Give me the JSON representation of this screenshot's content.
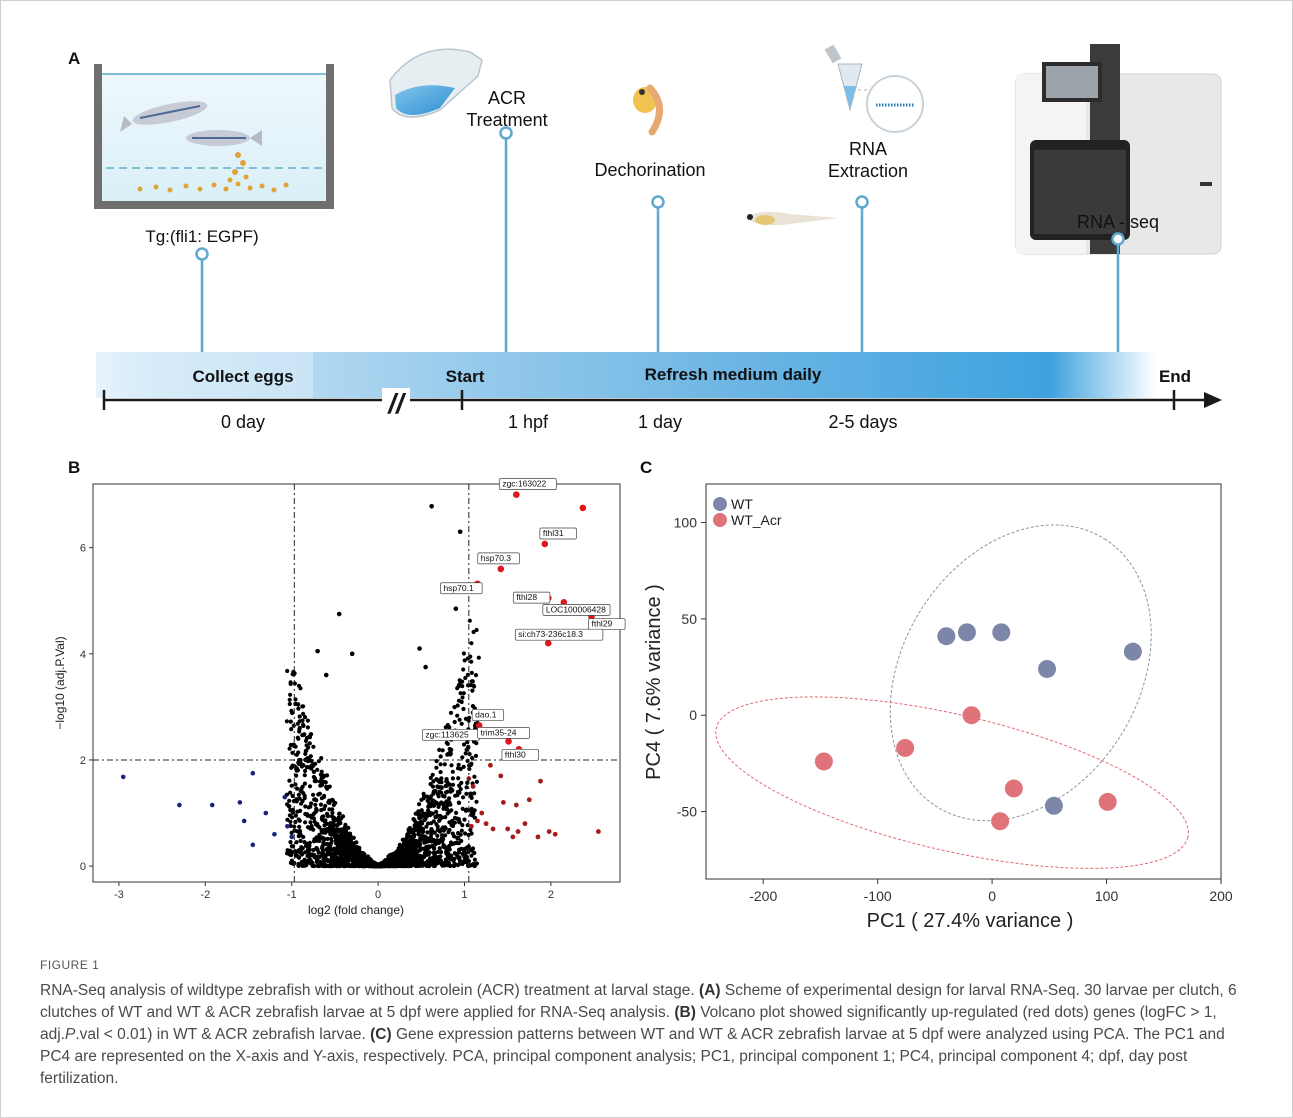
{
  "panelA": {
    "label": "A",
    "tank_label": "Tg:(fli1: EGPF)",
    "steps": [
      {
        "name": "acr",
        "label_lines": [
          "ACR",
          "Treatment"
        ]
      },
      {
        "name": "dechor",
        "label_lines": [
          "Dechorination"
        ]
      },
      {
        "name": "rna",
        "label_lines": [
          "RNA",
          "Extraction"
        ]
      },
      {
        "name": "seq",
        "label_lines": [
          "RNA - seq"
        ]
      }
    ],
    "bar_labels": {
      "collect": "Collect eggs",
      "start": "Start",
      "refresh": "Refresh medium daily",
      "end": "End"
    },
    "axis_labels": {
      "day0": "0 day",
      "hpf1": "1 hpf",
      "day1": "1 day",
      "days25": "2-5 days"
    },
    "break_mark": "//"
  },
  "panelB": {
    "label": "B",
    "chart_data": {
      "type": "scatter",
      "title": "",
      "xlabel": "log2 (fold change)",
      "ylabel": "−log10 (adj.P.Val)",
      "xlim": [
        -3.3,
        2.8
      ],
      "ylim": [
        -0.3,
        7.2
      ],
      "xticks": [
        -3,
        -2,
        -1,
        0,
        1,
        2
      ],
      "yticks": [
        0,
        2,
        4,
        6
      ],
      "thresholds": {
        "x": [
          -0.97,
          1.05
        ],
        "y": 2
      },
      "labeled_points": [
        {
          "x": 1.6,
          "y": 7.0,
          "label": "zgc:163022"
        },
        {
          "x": 1.93,
          "y": 6.07,
          "label": "fthl31"
        },
        {
          "x": 1.42,
          "y": 5.6,
          "label": "hsp70.3"
        },
        {
          "x": 1.15,
          "y": 5.32,
          "label": "hsp70.1"
        },
        {
          "x": 1.97,
          "y": 5.05,
          "label": "fthl28"
        },
        {
          "x": 2.15,
          "y": 4.97,
          "label": "LOC100006428"
        },
        {
          "x": 2.47,
          "y": 4.7,
          "label": "fthl29"
        },
        {
          "x": 1.97,
          "y": 4.2,
          "label": "si:ch73-236c18.3"
        },
        {
          "x": 1.17,
          "y": 2.65,
          "label": "dao.1"
        },
        {
          "x": 1.08,
          "y": 2.5,
          "label": "zgc:113625"
        },
        {
          "x": 1.51,
          "y": 2.35,
          "label": "trim35-24"
        },
        {
          "x": 1.63,
          "y": 2.2,
          "label": "fthl30"
        }
      ],
      "other_up": [
        {
          "x": 2.37,
          "y": 6.75
        }
      ],
      "series": [
        {
          "name": "up",
          "color": "#e0161c"
        },
        {
          "name": "down",
          "color": "#1a237e"
        },
        {
          "name": "ns",
          "color": "#000000"
        }
      ]
    }
  },
  "panelC": {
    "label": "C",
    "chart_data": {
      "type": "scatter",
      "xlabel": "PC1 ( 27.4% variance )",
      "ylabel": "PC4 ( 7.6% variance )",
      "xlim": [
        -250,
        200
      ],
      "ylim": [
        -85,
        120
      ],
      "xticks": [
        -200,
        -100,
        0,
        100,
        200
      ],
      "yticks": [
        -50,
        0,
        50,
        100
      ],
      "legend_position": "top-left",
      "series": [
        {
          "name": "WT",
          "color": "#7b86a8",
          "points": [
            [
              -40,
              41
            ],
            [
              -22,
              43
            ],
            [
              8,
              43
            ],
            [
              48,
              24
            ],
            [
              123,
              33
            ],
            [
              54,
              -47
            ]
          ]
        },
        {
          "name": "WT_Acr",
          "color": "#e0737a",
          "points": [
            [
              -147,
              -24
            ],
            [
              -76,
              -17
            ],
            [
              -18,
              0
            ],
            [
              19,
              -38
            ],
            [
              7,
              -55
            ],
            [
              101,
              -45
            ]
          ]
        }
      ]
    }
  },
  "caption": {
    "figure_label": "FIGURE 1",
    "intro": "RNA-Seq analysis of wildtype zebrafish with or without acrolein (ACR) treatment at larval stage. ",
    "a_tag": "(A)",
    "a_text": " Scheme of experimental design for larval RNA-Seq. 30 larvae per clutch, 6 clutches of WT and WT & ACR zebrafish larvae at 5 dpf were applied for RNA-Seq analysis. ",
    "b_tag": "(B)",
    "b_text_1": " Volcano plot showed significantly up-regulated (red dots) genes (logFC > 1, adj.",
    "b_italic": "P",
    "b_text_2": ".val < 0.01) in WT & ACR zebrafish larvae. ",
    "c_tag": "(C)",
    "c_text": " Gene expression patterns between WT and WT & ACR zebrafish larvae at 5 dpf were analyzed using PCA. The PC1 and PC4 are represented on the X-axis and Y-axis, respectively. PCA, principal component analysis; PC1, principal component 1; PC4, principal component 4; dpf, day post fertilization."
  }
}
